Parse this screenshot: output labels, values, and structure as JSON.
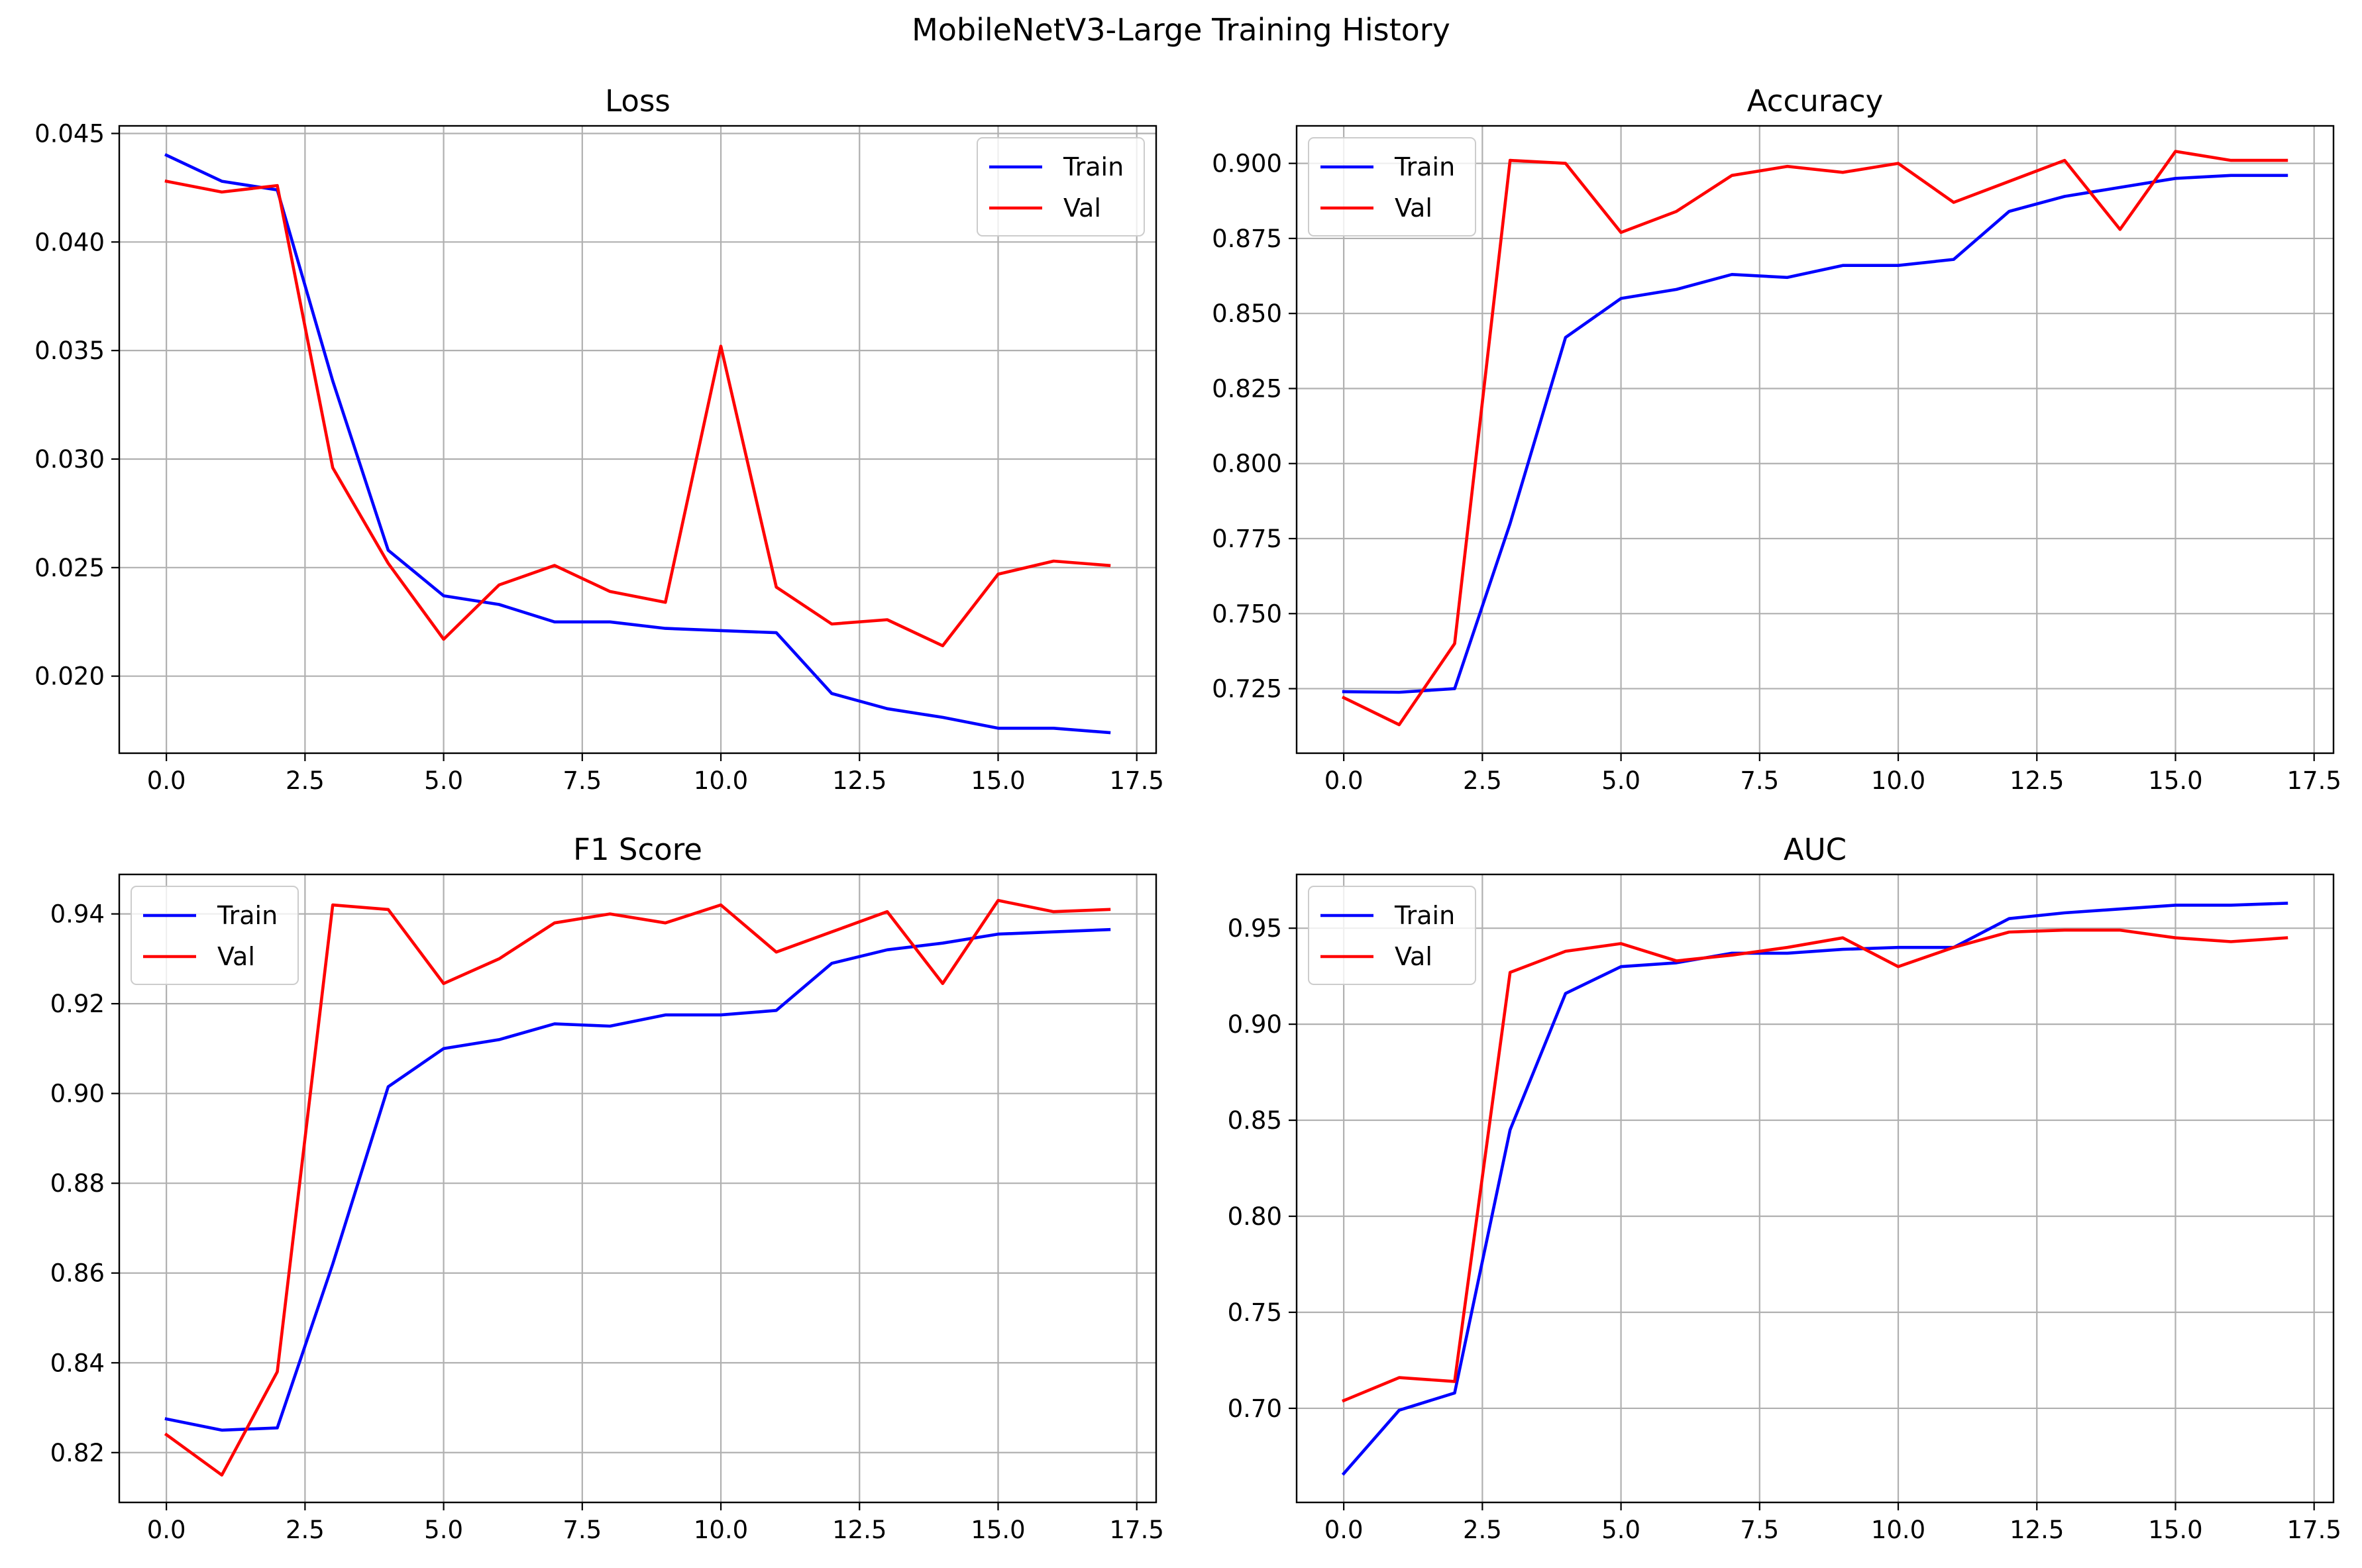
{
  "figure": {
    "title": "MobileNetV3-Large Training History"
  },
  "colors": {
    "train": "#0000ff",
    "val": "#ff0000",
    "grid": "#b0b0b0"
  },
  "chart_data": [
    {
      "type": "line",
      "title": "Loss",
      "x": [
        0,
        1,
        2,
        3,
        4,
        5,
        6,
        7,
        8,
        9,
        10,
        11,
        12,
        13,
        14,
        15,
        16,
        17
      ],
      "xlim": [
        -0.85,
        17.85
      ],
      "ylim": [
        0.01645,
        0.04535
      ],
      "xticks": [
        0,
        2.5,
        5,
        7.5,
        10,
        12.5,
        15,
        17.5
      ],
      "xtick_labels": [
        "0.0",
        "2.5",
        "5.0",
        "7.5",
        "10.0",
        "12.5",
        "15.0",
        "17.5"
      ],
      "yticks": [
        0.02,
        0.025,
        0.03,
        0.035,
        0.04,
        0.045
      ],
      "ytick_labels": [
        "0.020",
        "0.025",
        "0.030",
        "0.035",
        "0.040",
        "0.045"
      ],
      "legend": "upper right",
      "series": [
        {
          "name": "Train",
          "values": [
            0.044,
            0.0428,
            0.0424,
            0.0336,
            0.0258,
            0.0237,
            0.0233,
            0.0225,
            0.0225,
            0.0222,
            0.0221,
            0.022,
            0.0192,
            0.0185,
            0.0181,
            0.0176,
            0.0176,
            0.0174
          ]
        },
        {
          "name": "Val",
          "values": [
            0.0428,
            0.0423,
            0.0426,
            0.0296,
            0.0252,
            0.0217,
            0.0242,
            0.0251,
            0.0239,
            0.0234,
            0.0352,
            0.0241,
            0.0224,
            0.0226,
            0.0214,
            0.0247,
            0.0253,
            0.0251
          ]
        }
      ]
    },
    {
      "type": "line",
      "title": "Accuracy",
      "x": [
        0,
        1,
        2,
        3,
        4,
        5,
        6,
        7,
        8,
        9,
        10,
        11,
        12,
        13,
        14,
        15,
        16,
        17
      ],
      "xlim": [
        -0.85,
        17.85
      ],
      "ylim": [
        0.7035,
        0.9125
      ],
      "xticks": [
        0,
        2.5,
        5,
        7.5,
        10,
        12.5,
        15,
        17.5
      ],
      "xtick_labels": [
        "0.0",
        "2.5",
        "5.0",
        "7.5",
        "10.0",
        "12.5",
        "15.0",
        "17.5"
      ],
      "yticks": [
        0.725,
        0.75,
        0.775,
        0.8,
        0.825,
        0.85,
        0.875,
        0.9
      ],
      "ytick_labels": [
        "0.725",
        "0.750",
        "0.775",
        "0.800",
        "0.825",
        "0.850",
        "0.875",
        "0.900"
      ],
      "legend": "upper left",
      "series": [
        {
          "name": "Train",
          "values": [
            0.724,
            0.7238,
            0.725,
            0.78,
            0.842,
            0.855,
            0.858,
            0.863,
            0.862,
            0.866,
            0.866,
            0.868,
            0.884,
            0.889,
            0.892,
            0.895,
            0.896,
            0.896
          ]
        },
        {
          "name": "Val",
          "values": [
            0.722,
            0.713,
            0.74,
            0.901,
            0.9,
            0.877,
            0.884,
            0.896,
            0.899,
            0.897,
            0.9,
            0.887,
            0.894,
            0.901,
            0.878,
            0.904,
            0.901,
            0.901
          ]
        }
      ]
    },
    {
      "type": "line",
      "title": "F1 Score",
      "x": [
        0,
        1,
        2,
        3,
        4,
        5,
        6,
        7,
        8,
        9,
        10,
        11,
        12,
        13,
        14,
        15,
        16,
        17
      ],
      "xlim": [
        -0.85,
        17.85
      ],
      "ylim": [
        0.8089,
        0.9488
      ],
      "xticks": [
        0,
        2.5,
        5,
        7.5,
        10,
        12.5,
        15,
        17.5
      ],
      "xtick_labels": [
        "0.0",
        "2.5",
        "5.0",
        "7.5",
        "10.0",
        "12.5",
        "15.0",
        "17.5"
      ],
      "yticks": [
        0.82,
        0.84,
        0.86,
        0.88,
        0.9,
        0.92,
        0.94
      ],
      "ytick_labels": [
        "0.82",
        "0.84",
        "0.86",
        "0.88",
        "0.90",
        "0.92",
        "0.94"
      ],
      "legend": "upper left",
      "series": [
        {
          "name": "Train",
          "values": [
            0.8275,
            0.825,
            0.8255,
            0.862,
            0.9015,
            0.91,
            0.912,
            0.9155,
            0.915,
            0.9175,
            0.9175,
            0.9185,
            0.929,
            0.932,
            0.9335,
            0.9355,
            0.936,
            0.9365
          ]
        },
        {
          "name": "Val",
          "values": [
            0.824,
            0.815,
            0.838,
            0.942,
            0.941,
            0.9245,
            0.93,
            0.938,
            0.94,
            0.938,
            0.942,
            0.9315,
            0.936,
            0.9405,
            0.9245,
            0.943,
            0.9405,
            0.941
          ]
        }
      ]
    },
    {
      "type": "line",
      "title": "AUC",
      "x": [
        0,
        1,
        2,
        3,
        4,
        5,
        6,
        7,
        8,
        9,
        10,
        11,
        12,
        13,
        14,
        15,
        16,
        17
      ],
      "xlim": [
        -0.85,
        17.85
      ],
      "ylim": [
        0.651,
        0.978
      ],
      "xticks": [
        0,
        2.5,
        5,
        7.5,
        10,
        12.5,
        15,
        17.5
      ],
      "xtick_labels": [
        "0.0",
        "2.5",
        "5.0",
        "7.5",
        "10.0",
        "12.5",
        "15.0",
        "17.5"
      ],
      "yticks": [
        0.7,
        0.75,
        0.8,
        0.85,
        0.9,
        0.95
      ],
      "ytick_labels": [
        "0.70",
        "0.75",
        "0.80",
        "0.85",
        "0.90",
        "0.95"
      ],
      "legend": "upper left",
      "series": [
        {
          "name": "Train",
          "values": [
            0.666,
            0.699,
            0.708,
            0.845,
            0.916,
            0.93,
            0.932,
            0.937,
            0.937,
            0.939,
            0.94,
            0.94,
            0.955,
            0.958,
            0.96,
            0.962,
            0.962,
            0.963
          ]
        },
        {
          "name": "Val",
          "values": [
            0.704,
            0.716,
            0.714,
            0.927,
            0.938,
            0.942,
            0.933,
            0.936,
            0.94,
            0.945,
            0.93,
            0.94,
            0.948,
            0.949,
            0.949,
            0.945,
            0.943,
            0.945
          ]
        }
      ]
    }
  ]
}
